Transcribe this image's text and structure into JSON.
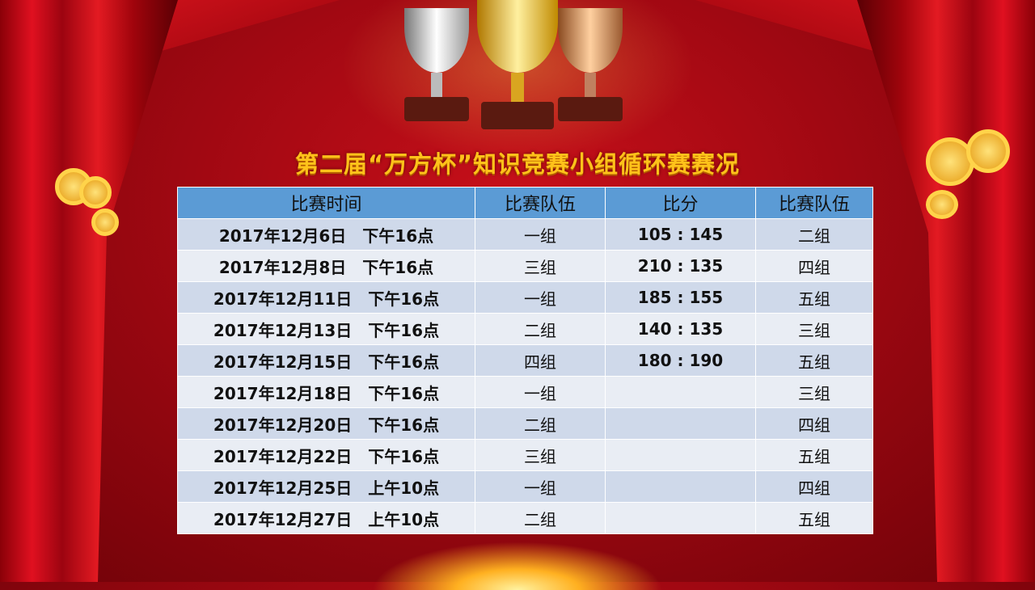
{
  "title": "第二届“万方杯”知识竞赛小组循环赛赛况",
  "table": {
    "headers": [
      "比赛时间",
      "比赛队伍",
      "比分",
      "比赛队伍"
    ],
    "rows": [
      [
        "2017年12月6日　下午16点",
        "一组",
        "105 : 145",
        "二组"
      ],
      [
        "2017年12月8日　下午16点",
        "三组",
        "210 : 135",
        "四组"
      ],
      [
        "2017年12月11日　下午16点",
        "一组",
        "185 : 155",
        "五组"
      ],
      [
        "2017年12月13日　下午16点",
        "二组",
        "140 : 135",
        "三组"
      ],
      [
        "2017年12月15日　下午16点",
        "四组",
        "180 : 190",
        "五组"
      ],
      [
        "2017年12月18日　下午16点",
        "一组",
        "",
        "三组"
      ],
      [
        "2017年12月20日　下午16点",
        "二组",
        "",
        "四组"
      ],
      [
        "2017年12月22日　下午16点",
        "三组",
        "",
        "五组"
      ],
      [
        "2017年12月25日　上午10点",
        "一组",
        "",
        "四组"
      ],
      [
        "2017年12月27日　上午10点",
        "二组",
        "",
        "五组"
      ]
    ]
  },
  "colors": {
    "header": "#5b9bd5",
    "row_odd": "#cfd9ea",
    "row_even": "#e9edf4",
    "title": "#ffc21a",
    "background": "#b00a14"
  },
  "icons": [
    "trophy-silver-icon",
    "trophy-gold-icon",
    "trophy-bronze-icon",
    "cloud-ornament-icon"
  ]
}
